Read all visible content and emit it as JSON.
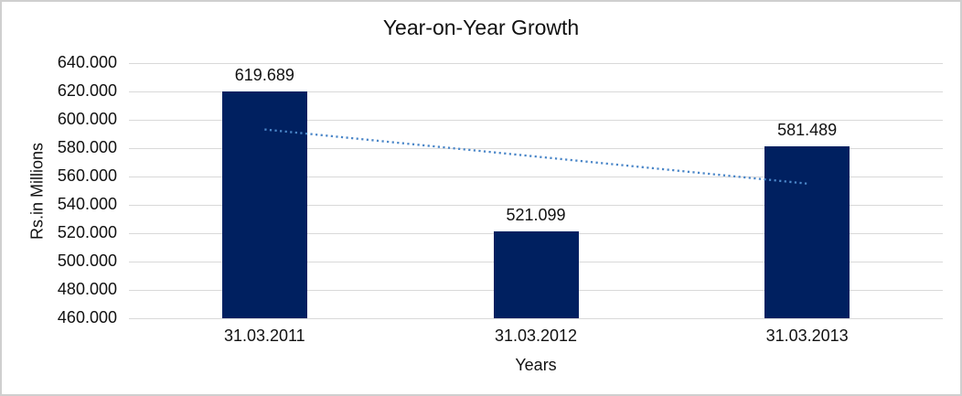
{
  "chart_data": {
    "type": "bar",
    "title": "Year-on-Year Growth",
    "categories": [
      "31.03.2011",
      "31.03.2012",
      "31.03.2013"
    ],
    "values": [
      619.689,
      521.099,
      581.489
    ],
    "data_labels": [
      "619.689",
      "521.099",
      "581.489"
    ],
    "xlabel": "Years",
    "ylabel": "Rs.in Millions",
    "ylim": [
      460,
      640
    ],
    "ytick_values": [
      460,
      480,
      500,
      520,
      540,
      560,
      580,
      600,
      620,
      640
    ],
    "ytick_labels": [
      "460.000",
      "480.000",
      "500.000",
      "520.000",
      "540.000",
      "560.000",
      "580.000",
      "600.000",
      "620.000",
      "640.000"
    ],
    "grid": true,
    "legend": false,
    "trendline": {
      "type": "linear",
      "style": "dotted",
      "start_value": 593.19,
      "end_value": 554.99
    },
    "colors": {
      "bar": "#002060",
      "trendline": "#4a86c8",
      "gridline": "#d9d9d9",
      "frame_border": "#cfcfcf",
      "text": "#111111"
    }
  }
}
